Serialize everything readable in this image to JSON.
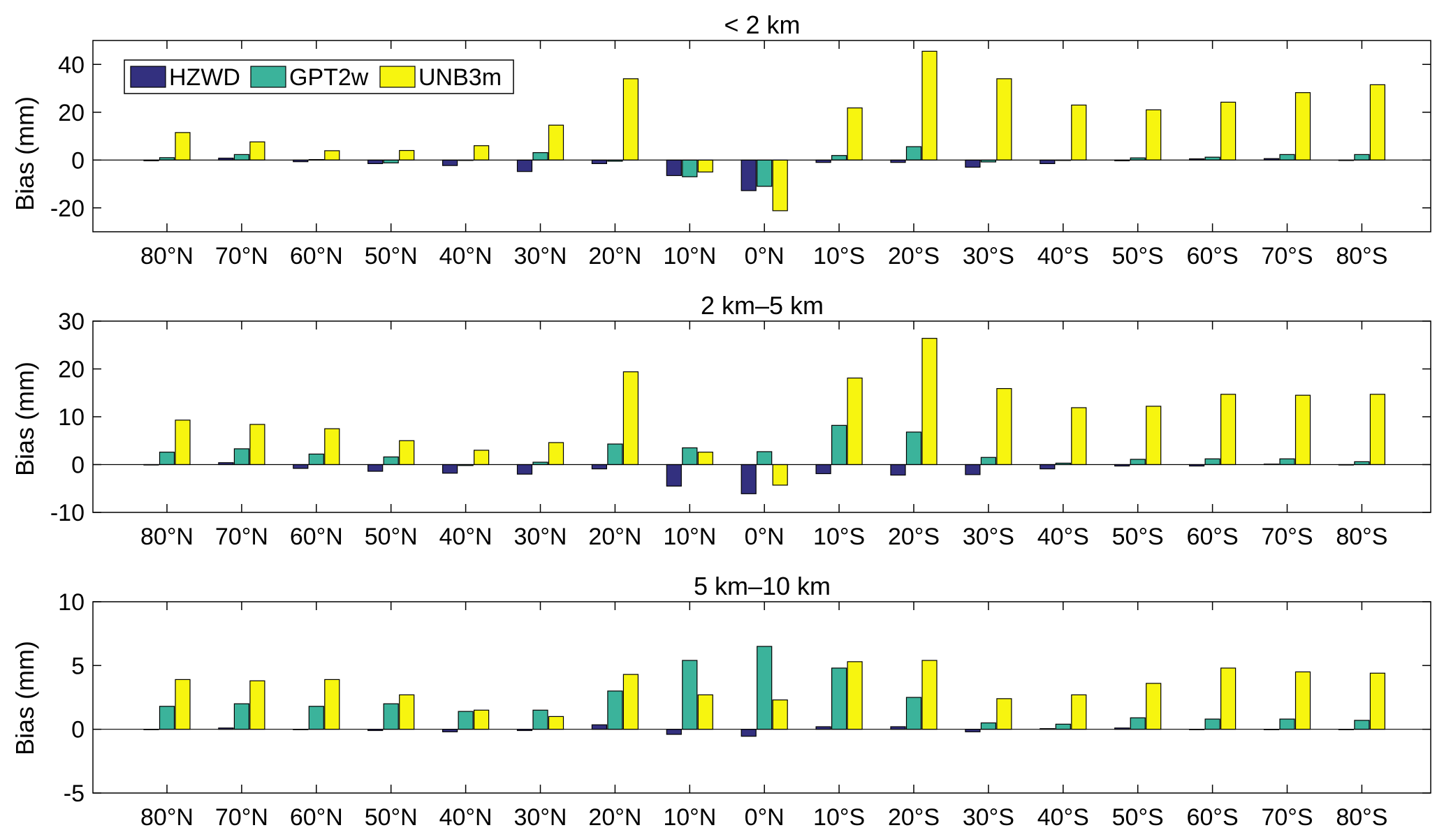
{
  "chart_data": [
    {
      "type": "bar",
      "title": "< 2 km",
      "xlabel": "",
      "ylabel": "Bias (mm)",
      "ylim": [
        -30,
        50
      ],
      "yticks": [
        -20,
        0,
        20,
        40
      ],
      "categories": [
        "80°N",
        "70°N",
        "60°N",
        "50°N",
        "40°N",
        "30°N",
        "20°N",
        "10°N",
        "0°N",
        "10°S",
        "20°S",
        "30°S",
        "40°S",
        "50°S",
        "60°S",
        "70°S",
        "80°S"
      ],
      "series": [
        {
          "name": "HZWD",
          "values": [
            -0.3,
            0.8,
            -0.7,
            -1.5,
            -2.3,
            -4.8,
            -1.5,
            -6.5,
            -12.8,
            -1.0,
            -1.0,
            -3.0,
            -1.5,
            -0.3,
            0.5,
            0.6,
            -0.2
          ]
        },
        {
          "name": "GPT2w",
          "values": [
            1.0,
            2.3,
            0.2,
            -1.2,
            0.0,
            3.1,
            -0.5,
            -7.0,
            -11.0,
            1.9,
            5.6,
            -0.8,
            0.0,
            0.9,
            1.2,
            2.3,
            2.3
          ]
        },
        {
          "name": "UNB3m",
          "values": [
            11.5,
            7.6,
            3.9,
            4.0,
            6.0,
            14.6,
            34.0,
            -5.0,
            -21.2,
            21.8,
            45.5,
            34.0,
            23.0,
            21.0,
            24.2,
            28.2,
            31.5
          ]
        }
      ],
      "legend": "top-left",
      "grid": false
    },
    {
      "type": "bar",
      "title": "2 km–5 km",
      "xlabel": "",
      "ylabel": "Bias (mm)",
      "ylim": [
        -10,
        30
      ],
      "yticks": [
        -10,
        0,
        10,
        20,
        30
      ],
      "categories": [
        "80°N",
        "70°N",
        "60°N",
        "50°N",
        "40°N",
        "30°N",
        "20°N",
        "10°N",
        "0°N",
        "10°S",
        "20°S",
        "30°S",
        "40°S",
        "50°S",
        "60°S",
        "70°S",
        "80°S"
      ],
      "series": [
        {
          "name": "HZWD",
          "values": [
            0.0,
            0.4,
            -0.8,
            -1.4,
            -1.8,
            -2.0,
            -0.9,
            -4.5,
            -6.1,
            -1.9,
            -2.2,
            -2.1,
            -0.9,
            -0.3,
            -0.3,
            0.1,
            0.0
          ]
        },
        {
          "name": "GPT2w",
          "values": [
            2.6,
            3.3,
            2.2,
            1.6,
            -0.2,
            0.5,
            4.3,
            3.5,
            2.7,
            8.2,
            6.8,
            1.5,
            0.3,
            1.1,
            1.2,
            1.2,
            0.6
          ]
        },
        {
          "name": "UNB3m",
          "values": [
            9.3,
            8.4,
            7.5,
            5.0,
            3.0,
            4.6,
            19.4,
            2.6,
            -4.3,
            18.1,
            26.4,
            15.9,
            11.9,
            12.2,
            14.7,
            14.5,
            14.7
          ]
        }
      ],
      "grid": false
    },
    {
      "type": "bar",
      "title": "5 km–10 km",
      "xlabel": "",
      "ylabel": "Bias (mm)",
      "ylim": [
        -5,
        10
      ],
      "yticks": [
        -5,
        0,
        5,
        10
      ],
      "categories": [
        "80°N",
        "70°N",
        "60°N",
        "50°N",
        "40°N",
        "30°N",
        "20°N",
        "10°N",
        "0°N",
        "10°S",
        "20°S",
        "30°S",
        "40°S",
        "50°S",
        "60°S",
        "70°S",
        "80°S"
      ],
      "series": [
        {
          "name": "HZWD",
          "values": [
            0.0,
            0.1,
            0.0,
            -0.1,
            -0.2,
            -0.1,
            0.35,
            -0.4,
            -0.55,
            0.2,
            0.2,
            -0.2,
            0.05,
            0.1,
            0.0,
            0.0,
            0.0
          ]
        },
        {
          "name": "GPT2w",
          "values": [
            1.8,
            2.0,
            1.8,
            2.0,
            1.4,
            1.5,
            3.0,
            5.4,
            6.5,
            4.8,
            2.5,
            0.5,
            0.4,
            0.9,
            0.8,
            0.8,
            0.7
          ]
        },
        {
          "name": "UNB3m",
          "values": [
            3.9,
            3.8,
            3.9,
            2.7,
            1.5,
            1.0,
            4.3,
            2.7,
            2.3,
            5.3,
            5.4,
            2.4,
            2.7,
            3.6,
            4.8,
            4.5,
            4.4
          ]
        }
      ],
      "grid": false
    }
  ],
  "colors": {
    "HZWD": "#33307f",
    "GPT2w": "#3bb39b",
    "UNB3m": "#f7f50f"
  }
}
